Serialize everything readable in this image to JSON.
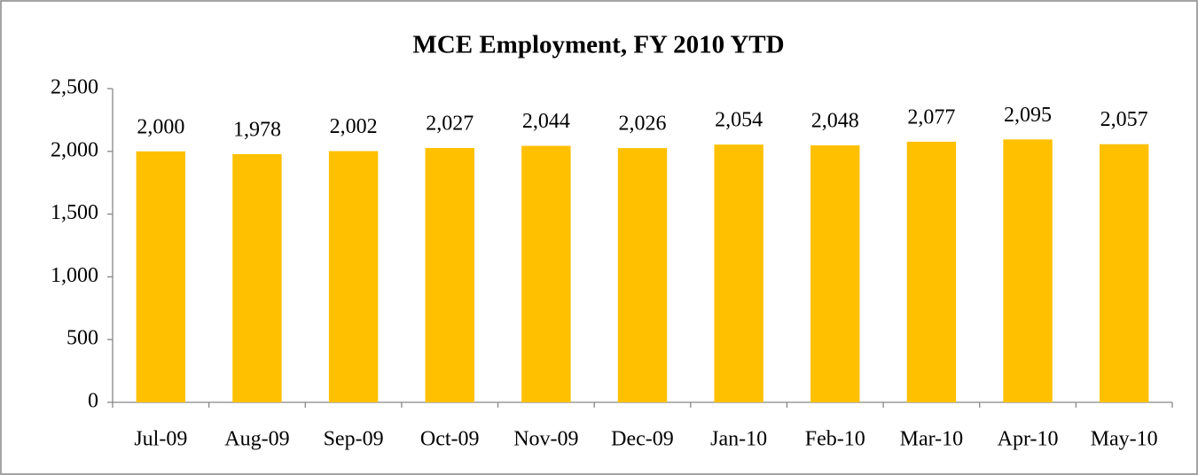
{
  "chart_data": {
    "type": "bar",
    "title": "MCE Employment, FY 2010 YTD",
    "categories": [
      "Jul-09",
      "Aug-09",
      "Sep-09",
      "Oct-09",
      "Nov-09",
      "Dec-09",
      "Jan-10",
      "Feb-10",
      "Mar-10",
      "Apr-10",
      "May-10"
    ],
    "values": [
      2000,
      1978,
      2002,
      2027,
      2044,
      2026,
      2054,
      2048,
      2077,
      2095,
      2057
    ],
    "value_labels": [
      "2,000",
      "1,978",
      "2,002",
      "2,027",
      "2,044",
      "2,026",
      "2,054",
      "2,048",
      "2,077",
      "2,095",
      "2,057"
    ],
    "color": "#ffc000",
    "ylim": [
      0,
      2500
    ],
    "yticks": [
      0,
      500,
      {
        "value": 1000,
        "label": "1,000"
      },
      {
        "value": 1500,
        "label": "1,500"
      },
      {
        "value": 2000,
        "label": "2,000"
      },
      {
        "value": 2500,
        "label": "2,500"
      }
    ],
    "grid": false
  }
}
